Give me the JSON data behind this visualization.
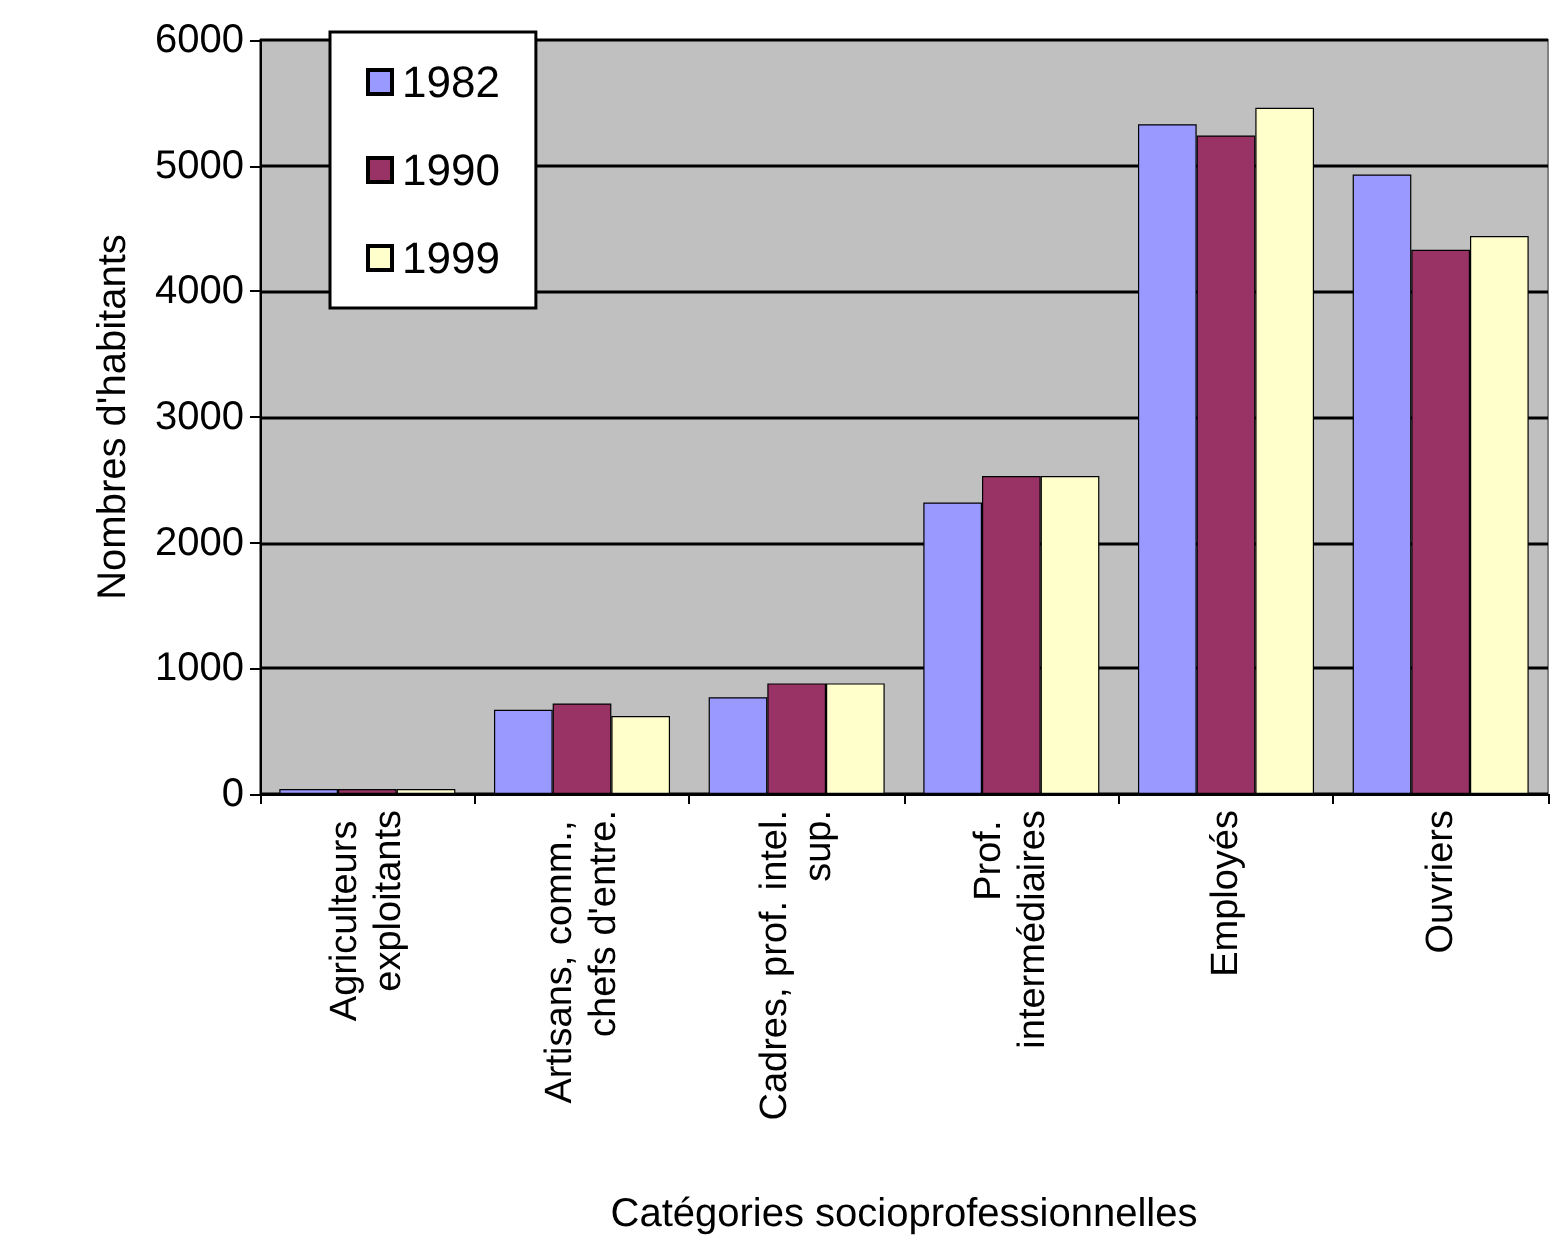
{
  "chart_data": {
    "type": "bar",
    "xlabel": "Catégories socioprofessionnelles",
    "ylabel": "Nombres d'habitants",
    "categories": [
      "Agriculteurs exploitants",
      "Artisans, comm., chefs d'entre.",
      "Cadres, prof. intel. sup.",
      "Prof. intermédiaires",
      "Employés",
      "Ouvriers"
    ],
    "series": [
      {
        "name": "1982",
        "color": "#9999ff",
        "values": [
          40,
          670,
          770,
          2320,
          5330,
          4930
        ]
      },
      {
        "name": "1990",
        "color": "#993366",
        "values": [
          40,
          720,
          880,
          2530,
          5240,
          4330
        ]
      },
      {
        "name": "1999",
        "color": "#ffffcc",
        "values": [
          40,
          620,
          880,
          2530,
          5460,
          4440
        ]
      }
    ],
    "ylim": [
      0,
      6000
    ],
    "yticks": [
      0,
      1000,
      2000,
      3000,
      4000,
      5000,
      6000
    ],
    "grid": "y",
    "legend": "top left"
  }
}
